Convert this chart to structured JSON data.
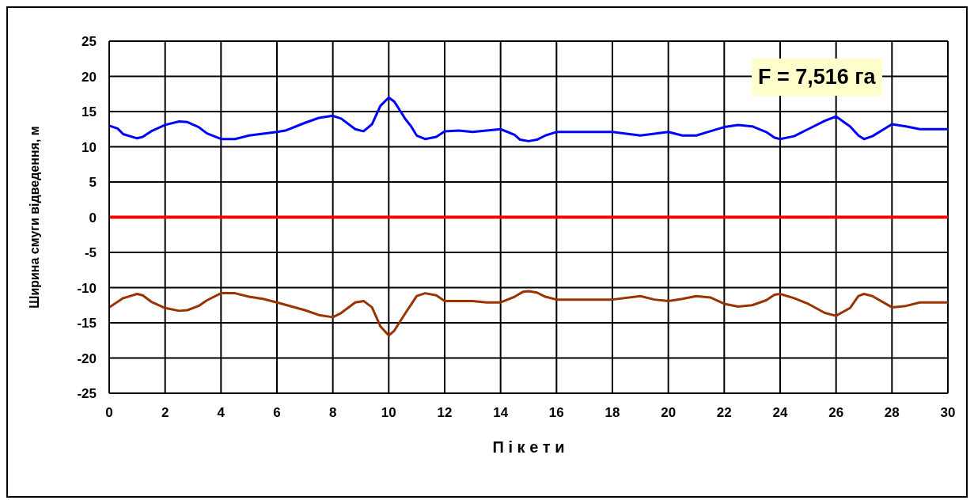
{
  "chart_data": {
    "type": "line",
    "xlabel": "П і к е т и",
    "ylabel": "Ширина смуги відведення, м",
    "annotations": [
      "F = 7,516 га"
    ],
    "xlim": [
      0,
      30
    ],
    "xticks": [
      0,
      2,
      4,
      6,
      8,
      10,
      12,
      14,
      16,
      18,
      20,
      22,
      24,
      26,
      28,
      30
    ],
    "ylim": [
      -25,
      25
    ],
    "yticks": [
      -25,
      -20,
      -15,
      -10,
      -5,
      0,
      5,
      10,
      15,
      20,
      25
    ],
    "grid": true,
    "marker": "none",
    "line_style": "solid",
    "ref_lines": [
      {
        "axis": "y",
        "value": 0,
        "label": null,
        "color": "#ff0000"
      }
    ],
    "series": [
      {
        "color": "#0000ff",
        "x": [
          0,
          0.3,
          0.5,
          1,
          1.2,
          1.5,
          2,
          2.5,
          2.8,
          3.2,
          3.5,
          4,
          4.5,
          5,
          6,
          6.3,
          7,
          7.5,
          8,
          8.3,
          8.8,
          9.1,
          9.4,
          9.7,
          10,
          10.2,
          10.6,
          10.8,
          11,
          11.3,
          11.7,
          12,
          12.5,
          13,
          13.5,
          14,
          14.5,
          14.7,
          15,
          15.3,
          15.6,
          16,
          18,
          19,
          20,
          20.5,
          21,
          21.5,
          22,
          22.5,
          23,
          23.5,
          23.8,
          24,
          24.5,
          25,
          25.6,
          26,
          26.5,
          26.8,
          27,
          27.3,
          28,
          28.5,
          29,
          30
        ],
        "values": [
          13,
          12.6,
          11.8,
          11.2,
          11.4,
          12.2,
          13.1,
          13.6,
          13.5,
          12.8,
          11.9,
          11.1,
          11.1,
          11.6,
          12.1,
          12.3,
          13.4,
          14.1,
          14.4,
          14,
          12.5,
          12.2,
          13.2,
          15.8,
          17,
          16.4,
          13.9,
          12.9,
          11.6,
          11.1,
          11.4,
          12.2,
          12.3,
          12.1,
          12.3,
          12.5,
          11.7,
          11,
          10.8,
          11,
          11.6,
          12.1,
          12.1,
          11.6,
          12.1,
          11.6,
          11.6,
          12.2,
          12.8,
          13.1,
          12.9,
          12.1,
          11.3,
          11.1,
          11.5,
          12.5,
          13.7,
          14.3,
          12.9,
          11.6,
          11.1,
          11.5,
          13.2,
          12.9,
          12.5,
          12.5
        ]
      },
      {
        "color": "#993300",
        "x": [
          0,
          0.5,
          1,
          1.2,
          1.5,
          2,
          2.5,
          2.8,
          3.2,
          3.5,
          4,
          4.5,
          5,
          5.5,
          6,
          7,
          7.5,
          8,
          8.3,
          8.8,
          9.1,
          9.4,
          9.7,
          10,
          10.2,
          10.6,
          10.8,
          11,
          11.3,
          11.7,
          12,
          13,
          13.5,
          14,
          14.5,
          14.8,
          15,
          15.3,
          15.6,
          16,
          18,
          19,
          19.5,
          20,
          20.5,
          21,
          21.5,
          22,
          22.5,
          23,
          23.5,
          23.8,
          24,
          24.5,
          25,
          25.6,
          26,
          26.5,
          26.8,
          27,
          27.3,
          28,
          28.5,
          29,
          30
        ],
        "values": [
          -12.8,
          -11.5,
          -10.9,
          -11.1,
          -12,
          -12.9,
          -13.3,
          -13.2,
          -12.6,
          -11.8,
          -10.8,
          -10.8,
          -11.3,
          -11.6,
          -12.1,
          -13.2,
          -13.9,
          -14.2,
          -13.6,
          -12.1,
          -11.9,
          -12.8,
          -15.5,
          -16.8,
          -16.1,
          -13.6,
          -12.4,
          -11.2,
          -10.8,
          -11.1,
          -11.9,
          -11.9,
          -12.1,
          -12.1,
          -11.3,
          -10.6,
          -10.5,
          -10.7,
          -11.3,
          -11.7,
          -11.7,
          -11.2,
          -11.7,
          -11.9,
          -11.6,
          -11.2,
          -11.4,
          -12.3,
          -12.7,
          -12.5,
          -11.8,
          -11,
          -10.9,
          -11.5,
          -12.3,
          -13.6,
          -14,
          -12.9,
          -11.2,
          -10.9,
          -11.2,
          -12.8,
          -12.6,
          -12.1,
          -12.1
        ]
      }
    ]
  }
}
